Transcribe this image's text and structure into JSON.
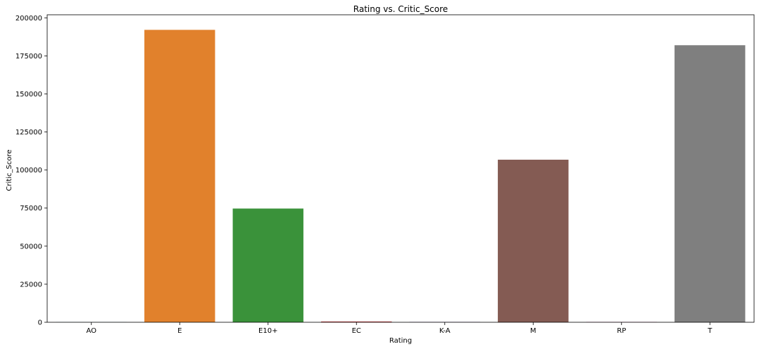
{
  "chart_data": {
    "type": "bar",
    "title": "Rating vs. Critic_Score",
    "xlabel": "Rating",
    "ylabel": "Critic_Score",
    "categories": [
      "AO",
      "E",
      "E10+",
      "EC",
      "K-A",
      "M",
      "RP",
      "T"
    ],
    "values": [
      93,
      192100,
      74700,
      500,
      245,
      106800,
      250,
      182000
    ],
    "colors": [
      "#3274a1",
      "#e1812c",
      "#3a923a",
      "#c03d3e",
      "#9372b2",
      "#845b53",
      "#d684bd",
      "#7f7f7f"
    ],
    "ylim": [
      0,
      202000
    ],
    "yticks": [
      0,
      25000,
      50000,
      75000,
      100000,
      125000,
      150000,
      175000,
      200000
    ],
    "grid": false
  }
}
